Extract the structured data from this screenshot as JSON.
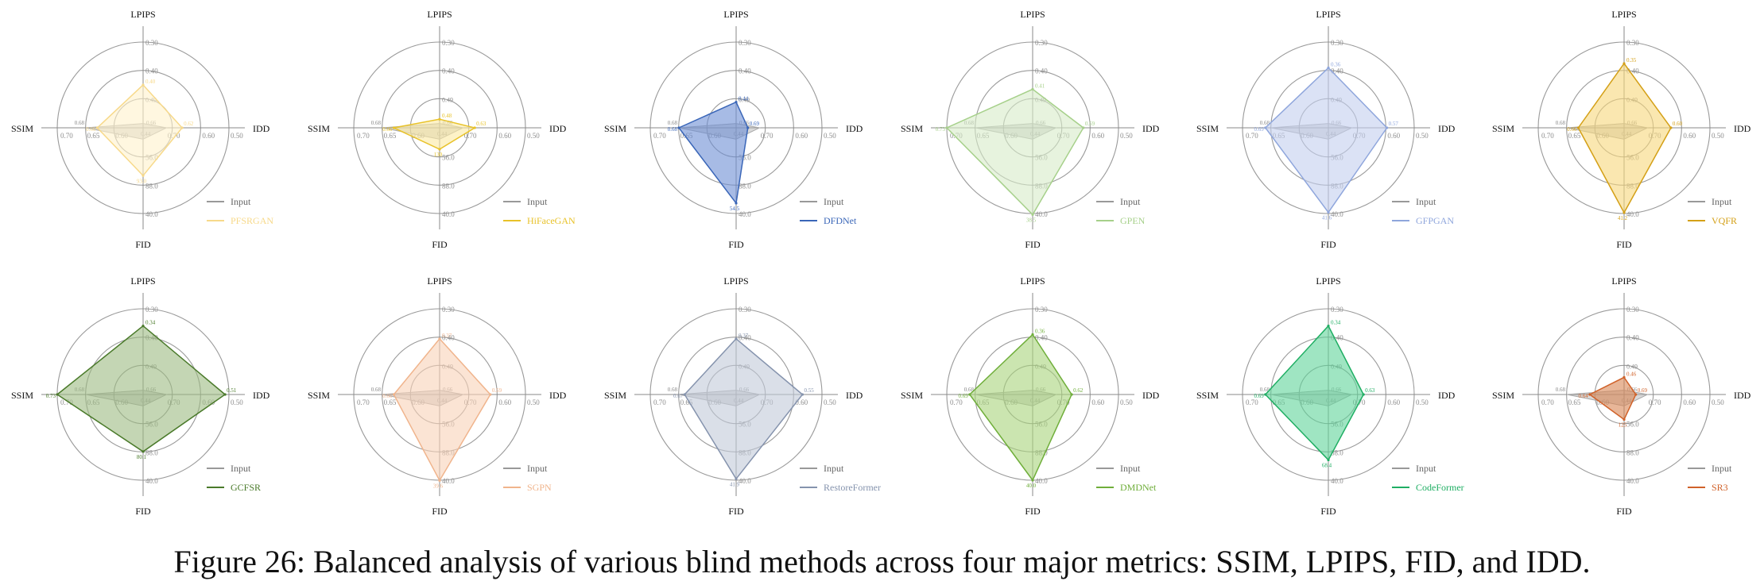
{
  "figure": {
    "caption": "Figure 26: Balanced analysis of various blind methods across four major metrics: SSIM, LPIPS, FID, and IDD."
  },
  "axes": {
    "top": "LPIPS",
    "right": "IDD",
    "bottom": "FID",
    "left": "SSIM",
    "ticks": {
      "lpips": [
        "0.30",
        "0.40",
        "0.49"
      ],
      "idd": [
        "0.50",
        "0.60",
        "0.70"
      ],
      "fid": [
        "56.0",
        "88.0",
        "40.0"
      ],
      "ssim": [
        "0.70",
        "0.65",
        "0.60"
      ],
      "center": [
        "0.66",
        "0.44"
      ]
    }
  },
  "input_series": {
    "name": "Input",
    "color": "#999999",
    "ssim": 0.68,
    "lpips": 0.49,
    "fid": 144,
    "idd": 0.66,
    "labels": {
      "ssim": "0.68",
      "lpips": "0.49",
      "idd": "0.66",
      "fid": "144"
    }
  },
  "chart_data": [
    {
      "type": "radar",
      "method": "PFSRGAN",
      "color": "#f7d98a",
      "fill": "#fff2cc",
      "legend": [
        "Input",
        "PFSRGAN"
      ],
      "values": {
        "lpips": 0.4,
        "idd": 0.62,
        "fid": 93.0,
        "ssim": 0.66
      },
      "labels": {
        "lpips": "0.40",
        "idd": "0.62",
        "fid": "93.0",
        "ssim": "0.66"
      }
    },
    {
      "type": "radar",
      "method": "HiFaceGAN",
      "color": "#e8c229",
      "fill": "#fbeaa2",
      "legend": [
        "Input",
        "HiFaceGAN"
      ],
      "values": {
        "lpips": 0.48,
        "idd": 0.63,
        "fid": 130,
        "ssim": 0.66
      },
      "labels": {
        "lpips": "0.48",
        "idd": "0.63",
        "fid": "130",
        "ssim": "0.66"
      }
    },
    {
      "type": "radar",
      "method": "DFDNet",
      "color": "#3a66b8",
      "fill": "#6d8ed4",
      "legend": [
        "Input",
        "DFDNet"
      ],
      "values": {
        "lpips": 0.44,
        "idd": 0.69,
        "fid": 54.5,
        "ssim": 0.68
      },
      "labels": {
        "lpips": "0.44",
        "idd": "0.69",
        "fid": "54.5",
        "ssim": "0.68"
      }
    },
    {
      "type": "radar",
      "method": "GPEN",
      "color": "#a6d08a",
      "fill": "#d7ebc8",
      "legend": [
        "Input",
        "GPEN"
      ],
      "values": {
        "lpips": 0.41,
        "idd": 0.59,
        "fid": 38.5,
        "ssim": 0.73
      },
      "labels": {
        "lpips": "0.41",
        "idd": "0.59",
        "fid": "38.5",
        "ssim": "0.73"
      }
    },
    {
      "type": "radar",
      "method": "GFPGAN",
      "color": "#8fa6dc",
      "fill": "#c3cfef",
      "legend": [
        "Input",
        "GFPGAN"
      ],
      "values": {
        "lpips": 0.36,
        "idd": 0.57,
        "fid": 41.6,
        "ssim": 0.69
      },
      "labels": {
        "lpips": "0.36",
        "idd": "0.57",
        "fid": "41.6",
        "ssim": "0.69"
      }
    },
    {
      "type": "radar",
      "method": "VQFR",
      "color": "#d4a017",
      "fill": "#f6d77c",
      "legend": [
        "Input",
        "VQFR"
      ],
      "values": {
        "lpips": 0.35,
        "idd": 0.6,
        "fid": 41.2,
        "ssim": 0.66
      },
      "labels": {
        "lpips": "0.35",
        "idd": "0.60",
        "fid": "41.2",
        "ssim": "0.66"
      }
    },
    {
      "type": "radar",
      "method": "GCFSR",
      "color": "#4a7a2a",
      "fill": "#9dba82",
      "legend": [
        "Input",
        "GCFSR"
      ],
      "values": {
        "lpips": 0.34,
        "idd": 0.51,
        "fid": 80.1,
        "ssim": 0.73
      },
      "labels": {
        "lpips": "0.34",
        "idd": "0.51",
        "fid": "80.1",
        "ssim": "0.73"
      }
    },
    {
      "type": "radar",
      "method": "SGPN",
      "color": "#f0b48c",
      "fill": "#f8d2b8",
      "legend": [
        "Input",
        "SGPN"
      ],
      "values": {
        "lpips": 0.37,
        "idd": 0.59,
        "fid": 39.6,
        "ssim": 0.66
      },
      "labels": {
        "lpips": "0.37",
        "idd": "0.59",
        "fid": "39.6",
        "ssim": "0.66"
      }
    },
    {
      "type": "radar",
      "method": "RestoreFormer",
      "color": "#8593ad",
      "fill": "#c1c9d9",
      "legend": [
        "Input",
        "RestoreFormer"
      ],
      "values": {
        "lpips": 0.37,
        "idd": 0.55,
        "fid": 41.9,
        "ssim": 0.67
      },
      "labels": {
        "lpips": "0.37",
        "idd": "0.55",
        "fid": "41.9",
        "ssim": "0.67"
      }
    },
    {
      "type": "radar",
      "method": "DMDNet",
      "color": "#6fae3a",
      "fill": "#a9d37c",
      "legend": [
        "Input",
        "DMDNet"
      ],
      "values": {
        "lpips": 0.36,
        "idd": 0.62,
        "fid": 40.0,
        "ssim": 0.69
      },
      "labels": {
        "lpips": "0.36",
        "idd": "0.62",
        "fid": "40.0",
        "ssim": "0.69"
      }
    },
    {
      "type": "radar",
      "method": "CodeFormer",
      "color": "#1fae63",
      "fill": "#5fd39a",
      "legend": [
        "Input",
        "CodeFormer"
      ],
      "values": {
        "lpips": 0.34,
        "idd": 0.63,
        "fid": 68.4,
        "ssim": 0.69
      },
      "labels": {
        "lpips": "0.34",
        "idd": "0.63",
        "fid": "68.4",
        "ssim": "0.69"
      }
    },
    {
      "type": "radar",
      "method": "SR3",
      "color": "#d0622a",
      "fill": "#d98654",
      "legend": [
        "Input",
        "SR3"
      ],
      "values": {
        "lpips": 0.46,
        "idd": 0.69,
        "fid": 125,
        "ssim": 0.64
      },
      "labels": {
        "lpips": "0.46",
        "idd": "0.69",
        "fid": "125",
        "ssim": "0.64"
      }
    }
  ]
}
